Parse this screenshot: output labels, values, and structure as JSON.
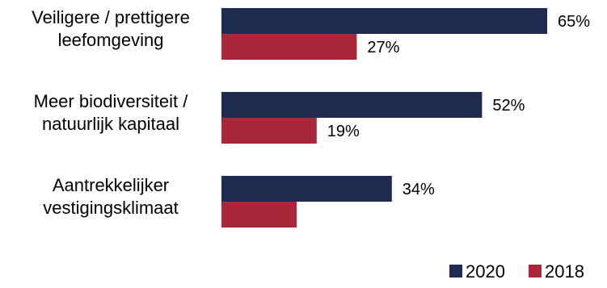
{
  "chart_data": {
    "type": "bar",
    "orientation": "horizontal",
    "categories": [
      [
        "Veiligere / prettigere",
        "leefomgeving"
      ],
      [
        "Meer biodiversiteit /",
        "natuurlijk kapitaal"
      ],
      [
        "Aantrekkelijker",
        "vestigingsklimaat"
      ]
    ],
    "series": [
      {
        "name": "2020",
        "color": "#1f2a4f",
        "values": [
          65,
          52,
          34
        ],
        "labels": [
          "65%",
          "52%",
          "34%"
        ]
      },
      {
        "name": "2018",
        "color": "#a8283a",
        "values": [
          27,
          19,
          15
        ],
        "labels": [
          "27%",
          "19%",
          ""
        ]
      }
    ],
    "xlim": [
      0,
      100
    ],
    "grid": false,
    "legend_position": "bottom-right"
  }
}
